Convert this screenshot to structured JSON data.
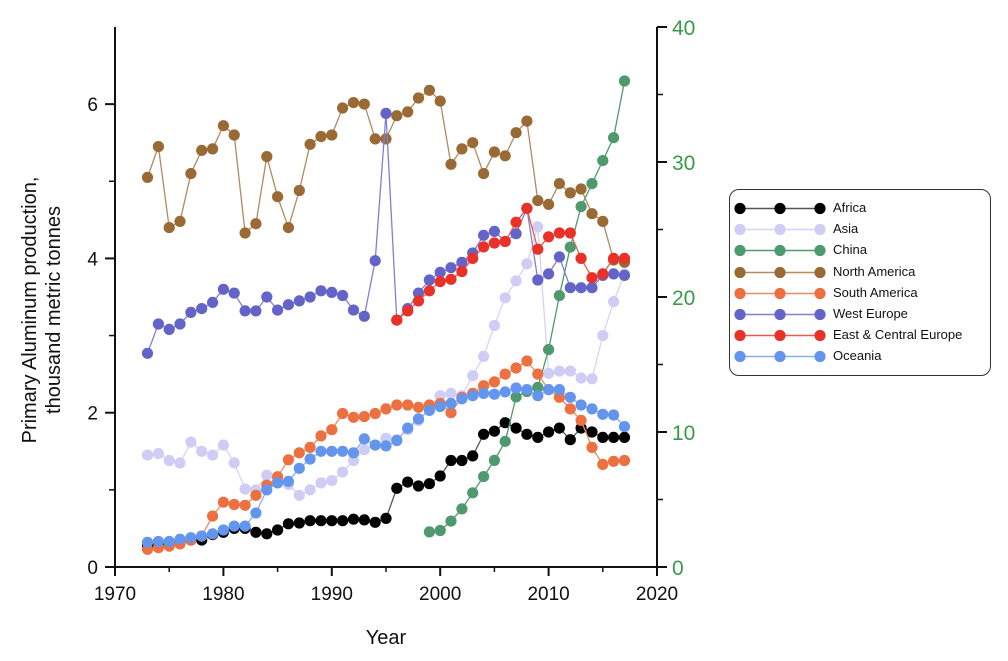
{
  "chart_data": {
    "type": "line",
    "title": "",
    "xlabel": "Year",
    "ylabel": "Primary Aluminum production, thousand metric tonnes",
    "ylabel_lines": [
      "Primary Aluminum production,",
      "thousand metric tonnes"
    ],
    "xlim": [
      1970,
      2020
    ],
    "ylim": [
      0,
      7
    ],
    "y2lim": [
      0,
      40
    ],
    "x_ticks": [
      1970,
      1980,
      1990,
      2000,
      2010,
      2020
    ],
    "x_tick_labels": [
      "1970",
      "1980",
      "1990",
      "2000",
      "2010",
      "2020"
    ],
    "y_ticks": [
      0,
      2,
      4,
      6
    ],
    "y_tick_labels": [
      "0",
      "2",
      "4",
      "6"
    ],
    "y2_ticks": [
      0,
      10,
      20,
      30,
      40
    ],
    "y2_tick_labels": [
      "0",
      "10",
      "20",
      "30",
      "40"
    ],
    "y2_color": "#3a9a4a",
    "grid": false,
    "legend_position": "right",
    "series": [
      {
        "name": "Africa",
        "color": "#000000",
        "line_color": "#555555",
        "axis": "left",
        "x": [
          1973,
          1974,
          1975,
          1976,
          1977,
          1978,
          1979,
          1980,
          1981,
          1982,
          1983,
          1984,
          1985,
          1986,
          1987,
          1988,
          1989,
          1990,
          1991,
          1992,
          1993,
          1994,
          1995,
          1996,
          1997,
          1998,
          1999,
          2000,
          2001,
          2002,
          2003,
          2004,
          2005,
          2006,
          2007,
          2008,
          2009,
          2010,
          2011,
          2012,
          2013,
          2014,
          2015,
          2016,
          2017
        ],
        "y": [
          0.27,
          0.29,
          0.3,
          0.33,
          0.35,
          0.35,
          0.42,
          0.45,
          0.5,
          0.5,
          0.45,
          0.43,
          0.48,
          0.56,
          0.57,
          0.6,
          0.6,
          0.6,
          0.6,
          0.62,
          0.61,
          0.58,
          0.63,
          1.02,
          1.1,
          1.05,
          1.08,
          1.18,
          1.38,
          1.38,
          1.44,
          1.72,
          1.76,
          1.87,
          1.8,
          1.72,
          1.68,
          1.75,
          1.8,
          1.65,
          1.8,
          1.75,
          1.68,
          1.68,
          1.68
        ]
      },
      {
        "name": "Asia",
        "color": "#cfcdf5",
        "line_color": "#d6d4f5",
        "axis": "left",
        "x": [
          1973,
          1974,
          1975,
          1976,
          1977,
          1978,
          1979,
          1980,
          1981,
          1982,
          1983,
          1984,
          1985,
          1986,
          1987,
          1988,
          1989,
          1990,
          1991,
          1992,
          1993,
          1994,
          1995,
          1996,
          1997,
          1998,
          1999,
          2000,
          2001,
          2002,
          2003,
          2004,
          2005,
          2006,
          2007,
          2008,
          2009,
          2010,
          2011,
          2012,
          2013,
          2014,
          2015,
          2016,
          2017
        ],
        "y": [
          1.45,
          1.47,
          1.38,
          1.35,
          1.62,
          1.5,
          1.45,
          1.58,
          1.35,
          1.01,
          1.0,
          1.19,
          1.12,
          1.07,
          0.93,
          1.0,
          1.09,
          1.12,
          1.23,
          1.38,
          1.52,
          1.58,
          1.67,
          1.65,
          1.78,
          1.9,
          2.05,
          2.22,
          2.25,
          2.22,
          2.48,
          2.73,
          3.13,
          3.49,
          3.71,
          3.93,
          4.41,
          2.51,
          2.54,
          2.54,
          2.45,
          2.44,
          3.0,
          3.44,
          3.8
        ]
      },
      {
        "name": "China",
        "color": "#4e9a6e",
        "line_color": "#4e9a6e",
        "axis": "right",
        "x": [
          1999,
          2000,
          2001,
          2002,
          2003,
          2004,
          2005,
          2006,
          2007,
          2008,
          2009,
          2010,
          2011,
          2012,
          2013,
          2014,
          2015,
          2016,
          2017
        ],
        "y": [
          2.6,
          2.7,
          3.4,
          4.3,
          5.5,
          6.7,
          7.9,
          9.3,
          12.6,
          13.0,
          13.3,
          16.1,
          20.1,
          23.7,
          26.7,
          28.4,
          30.1,
          31.8,
          36.0
        ]
      },
      {
        "name": "North America",
        "color": "#9a6a35",
        "line_color": "#b08a60",
        "axis": "left",
        "x": [
          1973,
          1974,
          1975,
          1976,
          1977,
          1978,
          1979,
          1980,
          1981,
          1982,
          1983,
          1984,
          1985,
          1986,
          1987,
          1988,
          1989,
          1990,
          1991,
          1992,
          1993,
          1994,
          1995,
          1996,
          1997,
          1998,
          1999,
          2000,
          2001,
          2002,
          2003,
          2004,
          2005,
          2006,
          2007,
          2008,
          2009,
          2010,
          2011,
          2012,
          2013,
          2014,
          2015,
          2016,
          2017
        ],
        "y": [
          5.05,
          5.45,
          4.4,
          4.48,
          5.1,
          5.4,
          5.42,
          5.72,
          5.6,
          4.33,
          4.45,
          5.32,
          4.8,
          4.4,
          4.88,
          5.48,
          5.58,
          5.6,
          5.95,
          6.02,
          6.0,
          5.55,
          5.55,
          5.85,
          5.9,
          6.08,
          6.18,
          6.04,
          5.22,
          5.42,
          5.5,
          5.1,
          5.38,
          5.33,
          5.63,
          5.78,
          4.75,
          4.7,
          4.97,
          4.85,
          4.9,
          4.58,
          4.48,
          3.98,
          3.95
        ]
      },
      {
        "name": "South America",
        "color": "#ec7040",
        "line_color": "#ee8a60",
        "axis": "left",
        "x": [
          1973,
          1974,
          1975,
          1976,
          1977,
          1978,
          1979,
          1980,
          1981,
          1982,
          1983,
          1984,
          1985,
          1986,
          1987,
          1988,
          1989,
          1990,
          1991,
          1992,
          1993,
          1994,
          1995,
          1996,
          1997,
          1998,
          1999,
          2000,
          2001,
          2002,
          2003,
          2004,
          2005,
          2006,
          2007,
          2008,
          2009,
          2010,
          2011,
          2012,
          2013,
          2014,
          2015,
          2016,
          2017
        ],
        "y": [
          0.23,
          0.25,
          0.27,
          0.3,
          0.35,
          0.4,
          0.66,
          0.84,
          0.81,
          0.8,
          0.93,
          1.06,
          1.17,
          1.39,
          1.48,
          1.55,
          1.7,
          1.78,
          1.99,
          1.94,
          1.95,
          1.99,
          2.05,
          2.1,
          2.1,
          2.07,
          2.1,
          2.12,
          2.0,
          2.2,
          2.25,
          2.35,
          2.4,
          2.5,
          2.58,
          2.67,
          2.5,
          2.3,
          2.2,
          2.05,
          1.9,
          1.55,
          1.33,
          1.37,
          1.38
        ]
      },
      {
        "name": "West Europe",
        "color": "#6464c8",
        "line_color": "#8080d0",
        "axis": "left",
        "x": [
          1973,
          1974,
          1975,
          1976,
          1977,
          1978,
          1979,
          1980,
          1981,
          1982,
          1983,
          1984,
          1985,
          1986,
          1987,
          1988,
          1989,
          1990,
          1991,
          1992,
          1993,
          1994,
          1995,
          1996,
          1997,
          1998,
          1999,
          2000,
          2001,
          2002,
          2003,
          2004,
          2005,
          2006,
          2007,
          2008,
          2009,
          2010,
          2011,
          2012,
          2013,
          2014,
          2015,
          2016,
          2017
        ],
        "y": [
          2.77,
          3.15,
          3.08,
          3.15,
          3.3,
          3.35,
          3.43,
          3.6,
          3.55,
          3.32,
          3.32,
          3.5,
          3.33,
          3.4,
          3.45,
          3.5,
          3.58,
          3.56,
          3.52,
          3.33,
          3.25,
          3.97,
          5.88,
          3.2,
          3.35,
          3.55,
          3.72,
          3.82,
          3.88,
          3.95,
          4.07,
          4.3,
          4.35,
          4.22,
          4.32,
          4.65,
          3.72,
          3.8,
          4.02,
          3.62,
          3.62,
          3.62,
          3.78,
          3.8,
          3.78
        ]
      },
      {
        "name": "East & Central Europe",
        "color": "#e83228",
        "line_color": "#e85a50",
        "axis": "left",
        "x": [
          1996,
          1997,
          1998,
          1999,
          2000,
          2001,
          2002,
          2003,
          2004,
          2005,
          2006,
          2007,
          2008,
          2009,
          2010,
          2011,
          2012,
          2013,
          2014,
          2015,
          2016,
          2017
        ],
        "y": [
          3.2,
          3.32,
          3.45,
          3.58,
          3.7,
          3.73,
          3.83,
          4.0,
          4.15,
          4.2,
          4.22,
          4.47,
          4.65,
          4.12,
          4.28,
          4.33,
          4.33,
          4.0,
          3.75,
          3.8,
          4.0,
          4.0
        ]
      },
      {
        "name": "Oceania",
        "color": "#6495ed",
        "line_color": "#8aaef0",
        "axis": "left",
        "x": [
          1973,
          1974,
          1975,
          1976,
          1977,
          1978,
          1979,
          1980,
          1981,
          1982,
          1983,
          1984,
          1985,
          1986,
          1987,
          1988,
          1989,
          1990,
          1991,
          1992,
          1993,
          1994,
          1995,
          1996,
          1997,
          1998,
          1999,
          2000,
          2001,
          2002,
          2003,
          2004,
          2005,
          2006,
          2007,
          2008,
          2009,
          2010,
          2011,
          2012,
          2013,
          2014,
          2015,
          2016,
          2017
        ],
        "y": [
          0.32,
          0.33,
          0.33,
          0.36,
          0.38,
          0.4,
          0.43,
          0.48,
          0.53,
          0.53,
          0.7,
          1.0,
          1.09,
          1.11,
          1.28,
          1.4,
          1.5,
          1.5,
          1.5,
          1.48,
          1.66,
          1.58,
          1.57,
          1.64,
          1.8,
          1.92,
          2.03,
          2.08,
          2.12,
          2.18,
          2.22,
          2.25,
          2.24,
          2.27,
          2.32,
          2.3,
          2.22,
          2.3,
          2.3,
          2.2,
          2.1,
          2.05,
          1.98,
          1.97,
          1.82
        ]
      }
    ]
  }
}
